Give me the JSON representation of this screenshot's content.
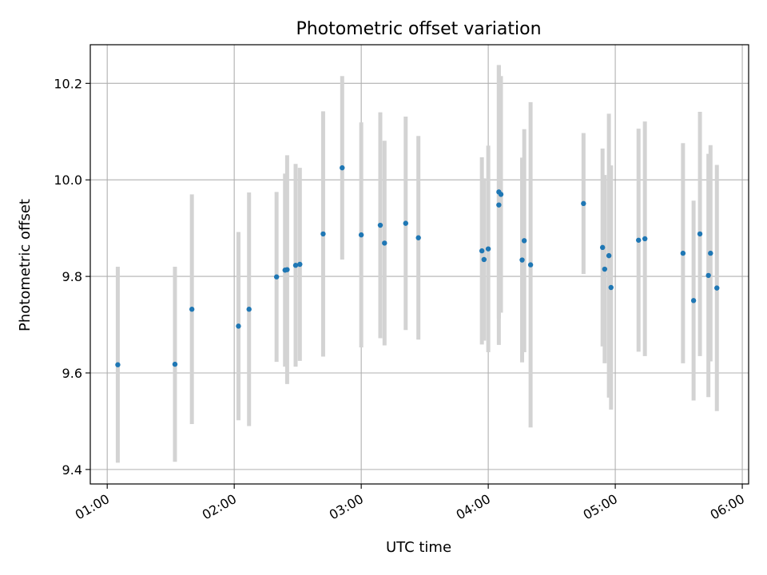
{
  "chart_data": {
    "type": "scatter",
    "title": "Photometric offset variation",
    "xlabel": "UTC time",
    "ylabel": "Photometric offset",
    "x_unit": "UTC hh:mm",
    "xlim": [
      "00:52",
      "06:03"
    ],
    "ylim": [
      9.37,
      10.28
    ],
    "x_ticks": [
      "01:00",
      "02:00",
      "03:00",
      "04:00",
      "05:00",
      "06:00"
    ],
    "y_ticks": [
      9.4,
      9.6,
      9.8,
      10.0,
      10.2
    ],
    "y_tick_labels": [
      "9.4",
      "9.6",
      "9.8",
      "10.0",
      "10.2"
    ],
    "grid": true,
    "point_color": "#1f77b4",
    "errorbar_color": "#d3d3d3",
    "points": [
      {
        "x": "01:05",
        "y": 9.617,
        "err": 0.203
      },
      {
        "x": "01:32",
        "y": 9.618,
        "err": 0.202
      },
      {
        "x": "01:40",
        "y": 9.732,
        "err": 0.238
      },
      {
        "x": "02:02",
        "y": 9.697,
        "err": 0.195
      },
      {
        "x": "02:07",
        "y": 9.732,
        "err": 0.242
      },
      {
        "x": "02:20",
        "y": 9.799,
        "err": 0.176
      },
      {
        "x": "02:24",
        "y": 9.813,
        "err": 0.2
      },
      {
        "x": "02:25",
        "y": 9.814,
        "err": 0.237
      },
      {
        "x": "02:29",
        "y": 9.823,
        "err": 0.21
      },
      {
        "x": "02:31",
        "y": 9.825,
        "err": 0.2
      },
      {
        "x": "02:42",
        "y": 9.888,
        "err": 0.254
      },
      {
        "x": "02:51",
        "y": 10.025,
        "err": 0.19
      },
      {
        "x": "03:00",
        "y": 9.886,
        "err": 0.233
      },
      {
        "x": "03:09",
        "y": 9.906,
        "err": 0.234
      },
      {
        "x": "03:11",
        "y": 9.869,
        "err": 0.212
      },
      {
        "x": "03:21",
        "y": 9.91,
        "err": 0.221
      },
      {
        "x": "03:27",
        "y": 9.88,
        "err": 0.211
      },
      {
        "x": "03:57",
        "y": 9.853,
        "err": 0.194
      },
      {
        "x": "03:58",
        "y": 9.835,
        "err": 0.168
      },
      {
        "x": "04:00",
        "y": 9.857,
        "err": 0.214
      },
      {
        "x": "04:05",
        "y": 9.948,
        "err": 0.29
      },
      {
        "x": "04:05",
        "y": 9.975,
        "err": 0.262
      },
      {
        "x": "04:06",
        "y": 9.97,
        "err": 0.245
      },
      {
        "x": "04:16",
        "y": 9.834,
        "err": 0.212
      },
      {
        "x": "04:17",
        "y": 9.874,
        "err": 0.231
      },
      {
        "x": "04:20",
        "y": 9.824,
        "err": 0.337
      },
      {
        "x": "04:45",
        "y": 9.951,
        "err": 0.146
      },
      {
        "x": "04:54",
        "y": 9.86,
        "err": 0.205
      },
      {
        "x": "04:55",
        "y": 9.815,
        "err": 0.195
      },
      {
        "x": "04:57",
        "y": 9.843,
        "err": 0.294
      },
      {
        "x": "04:58",
        "y": 9.777,
        "err": 0.253
      },
      {
        "x": "05:11",
        "y": 9.875,
        "err": 0.231
      },
      {
        "x": "05:14",
        "y": 9.878,
        "err": 0.243
      },
      {
        "x": "05:32",
        "y": 9.848,
        "err": 0.228
      },
      {
        "x": "05:37",
        "y": 9.75,
        "err": 0.207
      },
      {
        "x": "05:40",
        "y": 9.888,
        "err": 0.253
      },
      {
        "x": "05:44",
        "y": 9.802,
        "err": 0.252
      },
      {
        "x": "05:45",
        "y": 9.848,
        "err": 0.224
      },
      {
        "x": "05:48",
        "y": 9.776,
        "err": 0.255
      }
    ]
  }
}
